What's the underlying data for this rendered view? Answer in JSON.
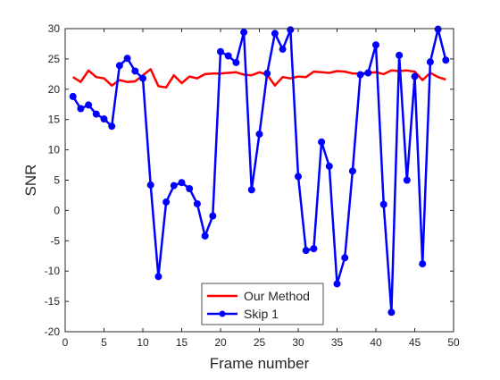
{
  "chart_data": {
    "type": "line",
    "xlabel": "Frame number",
    "ylabel": "SNR",
    "xlim": [
      0,
      50
    ],
    "ylim": [
      -20,
      30
    ],
    "xticks": [
      0,
      5,
      10,
      15,
      20,
      25,
      30,
      35,
      40,
      45,
      50
    ],
    "yticks": [
      -20,
      -15,
      -10,
      -5,
      0,
      5,
      10,
      15,
      20,
      25,
      30
    ],
    "grid": false,
    "legend_position": "bottom-center",
    "series": [
      {
        "name": "Our Method",
        "color": "#ff0000",
        "marker": "none",
        "x": [
          1,
          2,
          3,
          4,
          5,
          6,
          7,
          8,
          9,
          10,
          11,
          12,
          13,
          14,
          15,
          16,
          17,
          18,
          19,
          20,
          21,
          22,
          23,
          24,
          25,
          26,
          27,
          28,
          29,
          30,
          31,
          32,
          33,
          34,
          35,
          36,
          37,
          38,
          39,
          40,
          41,
          42,
          43,
          44,
          45,
          46,
          47,
          48,
          49
        ],
        "y": [
          22.0,
          21.2,
          23.1,
          22.0,
          21.8,
          20.6,
          21.5,
          21.2,
          21.3,
          22.3,
          23.3,
          20.5,
          20.3,
          22.3,
          21.0,
          22.1,
          21.8,
          22.5,
          22.6,
          22.6,
          22.7,
          22.8,
          22.4,
          22.3,
          22.8,
          22.4,
          20.6,
          22.0,
          21.8,
          22.1,
          22.0,
          22.9,
          22.8,
          22.7,
          23.0,
          22.9,
          22.6,
          22.6,
          22.7,
          22.8,
          22.5,
          23.1,
          23.0,
          23.1,
          22.9,
          21.5,
          22.7,
          22.0,
          21.6
        ]
      },
      {
        "name": "Skip 1",
        "color": "#0000ff",
        "marker": "circle",
        "x": [
          1,
          2,
          3,
          4,
          5,
          6,
          7,
          8,
          9,
          10,
          11,
          12,
          13,
          14,
          15,
          16,
          17,
          18,
          19,
          20,
          21,
          22,
          23,
          24,
          25,
          26,
          27,
          28,
          29,
          30,
          31,
          32,
          33,
          34,
          35,
          36,
          37,
          38,
          39,
          40,
          41,
          42,
          43,
          44,
          45,
          46,
          47,
          48,
          49
        ],
        "y": [
          18.8,
          16.8,
          17.4,
          15.9,
          15.1,
          13.9,
          23.9,
          25.1,
          23.0,
          21.8,
          4.2,
          -10.9,
          1.4,
          4.1,
          4.6,
          3.6,
          1.1,
          -4.2,
          -0.9,
          26.2,
          25.5,
          24.4,
          29.4,
          3.4,
          12.6,
          22.6,
          29.2,
          26.6,
          29.8,
          5.6,
          -6.6,
          -6.3,
          11.3,
          7.3,
          -12.1,
          -7.8,
          6.5,
          22.4,
          22.7,
          27.3,
          1.0,
          -16.8,
          25.6,
          5.0,
          22.1,
          -8.8,
          24.5,
          29.9,
          24.8
        ]
      }
    ]
  }
}
